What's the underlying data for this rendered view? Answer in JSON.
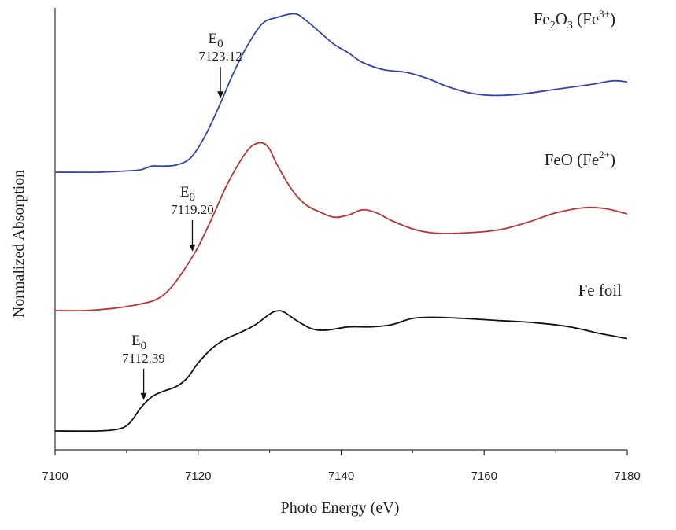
{
  "chart_data": {
    "type": "line",
    "title": "",
    "xlabel": "Photo Energy (eV)",
    "ylabel": "Normalized Absorption",
    "xlim": [
      7100,
      7180
    ],
    "x_ticks": [
      "7100",
      "7120",
      "7140",
      "7160",
      "7180"
    ],
    "y_ticks_labeled": false,
    "grid": false,
    "legend": "none (series labeled inline at right)",
    "series": [
      {
        "name": "Fe2O3 (Fe3+)",
        "label_main": "Fe",
        "label_sub1": "2",
        "label_mid": "O",
        "label_sub2": "3",
        "label_paren_open": " (Fe",
        "label_sup": "3+",
        "label_paren_close": ")",
        "color": "#3344aa",
        "e0_symbol": "E",
        "e0_subscript": "0",
        "e0_value": "7123.12",
        "e0_x": 7123.12,
        "points": [
          [
            7100,
            0.0
          ],
          [
            7106,
            0.0
          ],
          [
            7110,
            0.01
          ],
          [
            7112,
            0.02
          ],
          [
            7113.5,
            0.05
          ],
          [
            7115,
            0.05
          ],
          [
            7117,
            0.06
          ],
          [
            7119,
            0.12
          ],
          [
            7121,
            0.3
          ],
          [
            7123,
            0.55
          ],
          [
            7125,
            0.82
          ],
          [
            7127,
            1.05
          ],
          [
            7129,
            1.22
          ],
          [
            7131,
            1.27
          ],
          [
            7133.5,
            1.3
          ],
          [
            7135,
            1.25
          ],
          [
            7137,
            1.15
          ],
          [
            7139,
            1.05
          ],
          [
            7141,
            0.98
          ],
          [
            7143,
            0.9
          ],
          [
            7146,
            0.84
          ],
          [
            7149,
            0.82
          ],
          [
            7152,
            0.77
          ],
          [
            7155,
            0.7
          ],
          [
            7158,
            0.65
          ],
          [
            7161,
            0.63
          ],
          [
            7165,
            0.64
          ],
          [
            7170,
            0.68
          ],
          [
            7175,
            0.72
          ],
          [
            7178,
            0.75
          ],
          [
            7180,
            0.74
          ]
        ]
      },
      {
        "name": "FeO (Fe2+)",
        "label_main": "FeO",
        "label_paren_open": " (Fe",
        "label_sup": "2+",
        "label_paren_close": ")",
        "color": "#bb3333",
        "e0_symbol": "E",
        "e0_subscript": "0",
        "e0_value": "7119.20",
        "e0_x": 7119.2,
        "points": [
          [
            7100,
            0.0
          ],
          [
            7104,
            0.0
          ],
          [
            7108,
            0.02
          ],
          [
            7111,
            0.05
          ],
          [
            7114,
            0.1
          ],
          [
            7116,
            0.2
          ],
          [
            7118,
            0.38
          ],
          [
            7120,
            0.6
          ],
          [
            7122,
            0.88
          ],
          [
            7124,
            1.18
          ],
          [
            7126,
            1.42
          ],
          [
            7127.5,
            1.55
          ],
          [
            7129,
            1.58
          ],
          [
            7130,
            1.52
          ],
          [
            7131,
            1.38
          ],
          [
            7133,
            1.15
          ],
          [
            7135,
            1.0
          ],
          [
            7137,
            0.93
          ],
          [
            7139,
            0.88
          ],
          [
            7141,
            0.9
          ],
          [
            7143,
            0.95
          ],
          [
            7145,
            0.92
          ],
          [
            7147,
            0.85
          ],
          [
            7150,
            0.77
          ],
          [
            7153,
            0.73
          ],
          [
            7157,
            0.73
          ],
          [
            7162,
            0.76
          ],
          [
            7166,
            0.83
          ],
          [
            7170,
            0.92
          ],
          [
            7174,
            0.97
          ],
          [
            7177,
            0.96
          ],
          [
            7180,
            0.91
          ]
        ]
      },
      {
        "name": "Fe foil",
        "label_main": "Fe foil",
        "color": "#111111",
        "e0_symbol": "E",
        "e0_subscript": "0",
        "e0_value": "7112.39",
        "e0_x": 7112.39,
        "points": [
          [
            7100,
            0.0
          ],
          [
            7106,
            0.0
          ],
          [
            7109,
            0.02
          ],
          [
            7110.5,
            0.08
          ],
          [
            7112,
            0.22
          ],
          [
            7113.5,
            0.32
          ],
          [
            7115,
            0.37
          ],
          [
            7117,
            0.42
          ],
          [
            7118.5,
            0.5
          ],
          [
            7120,
            0.64
          ],
          [
            7122,
            0.78
          ],
          [
            7124,
            0.87
          ],
          [
            7126,
            0.93
          ],
          [
            7128,
            1.0
          ],
          [
            7130,
            1.1
          ],
          [
            7131,
            1.13
          ],
          [
            7132,
            1.12
          ],
          [
            7134,
            1.03
          ],
          [
            7136,
            0.96
          ],
          [
            7138,
            0.95
          ],
          [
            7141,
            0.98
          ],
          [
            7144,
            0.98
          ],
          [
            7147,
            1.0
          ],
          [
            7150,
            1.06
          ],
          [
            7153,
            1.07
          ],
          [
            7157,
            1.06
          ],
          [
            7162,
            1.04
          ],
          [
            7167,
            1.02
          ],
          [
            7172,
            0.98
          ],
          [
            7176,
            0.92
          ],
          [
            7180,
            0.87
          ]
        ]
      }
    ]
  }
}
